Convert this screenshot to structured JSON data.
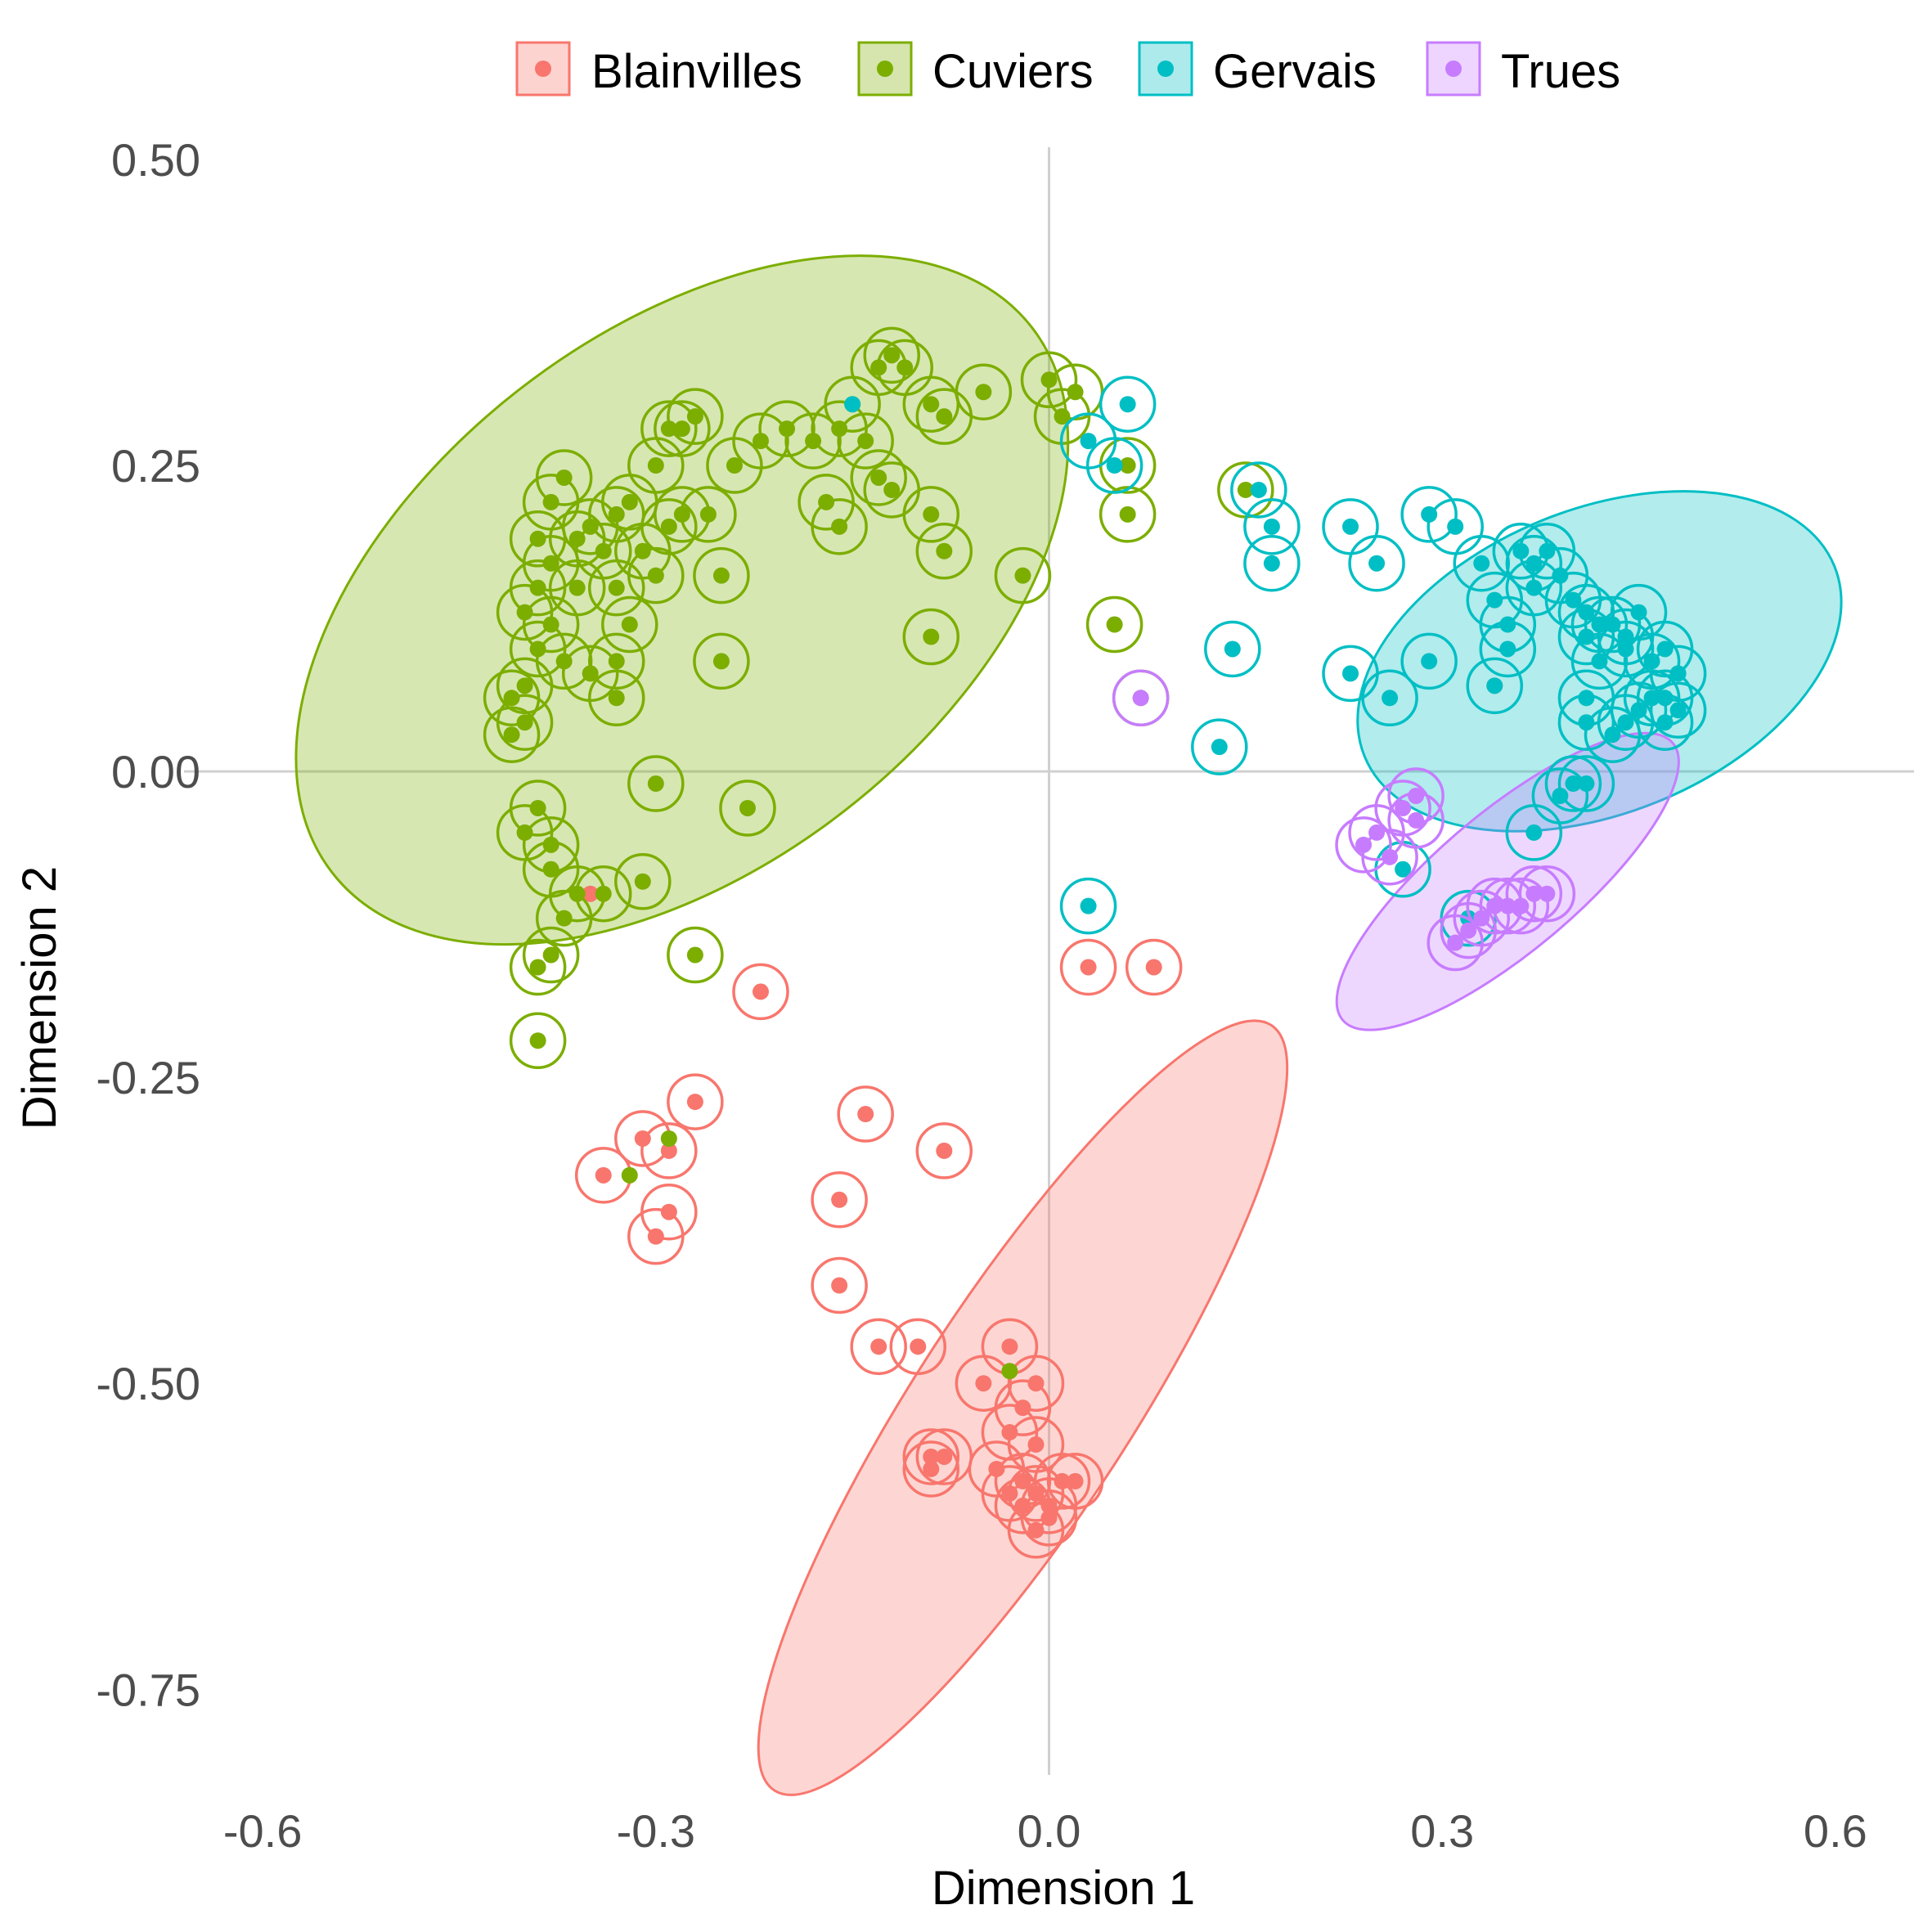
{
  "chart_data": {
    "type": "scatter",
    "xlabel": "Dimension 1",
    "ylabel": "Dimension 2",
    "xlim": [
      -0.66,
      0.66
    ],
    "ylim": [
      -0.82,
      0.51
    ],
    "x_ticks": [
      "-0.6",
      "-0.3",
      "0.0",
      "0.3",
      "0.6"
    ],
    "x_tick_values": [
      -0.6,
      -0.3,
      0.0,
      0.3,
      0.6
    ],
    "y_ticks": [
      "0.50",
      "0.25",
      "0.00",
      "-0.25",
      "-0.50",
      "-0.75"
    ],
    "y_tick_values": [
      0.5,
      0.25,
      0.0,
      -0.25,
      -0.5,
      -0.75
    ],
    "grid": false,
    "zero_lines": true,
    "legend_position": "top",
    "series": [
      {
        "name": "Blainvilles",
        "color": "#F8766D",
        "ellipse": {
          "cx": -0.02,
          "cy": -0.52,
          "rx": 0.36,
          "ry": 0.085,
          "angle": -57
        },
        "points": [
          [
            -0.27,
            -0.27
          ],
          [
            -0.29,
            -0.31
          ],
          [
            -0.31,
            -0.3
          ],
          [
            -0.34,
            -0.33
          ],
          [
            -0.29,
            -0.36
          ],
          [
            -0.3,
            -0.38
          ],
          [
            -0.08,
            -0.31
          ],
          [
            -0.14,
            -0.28
          ],
          [
            -0.16,
            -0.35
          ],
          [
            -0.16,
            -0.42
          ],
          [
            -0.13,
            -0.47
          ],
          [
            -0.1,
            -0.47
          ],
          [
            -0.03,
            -0.47
          ],
          [
            -0.05,
            -0.5
          ],
          [
            -0.01,
            -0.5
          ],
          [
            -0.02,
            -0.52
          ],
          [
            -0.09,
            -0.56
          ],
          [
            -0.08,
            -0.56
          ],
          [
            -0.09,
            -0.57
          ],
          [
            -0.03,
            -0.54
          ],
          [
            -0.01,
            -0.55
          ],
          [
            -0.04,
            -0.57
          ],
          [
            -0.02,
            -0.58
          ],
          [
            -0.03,
            -0.59
          ],
          [
            -0.01,
            -0.59
          ],
          [
            0.01,
            -0.58
          ],
          [
            0.02,
            -0.58
          ],
          [
            -0.02,
            -0.6
          ],
          [
            0.0,
            -0.61
          ],
          [
            -0.01,
            -0.62
          ],
          [
            0.0,
            -0.6
          ],
          [
            0.03,
            -0.16
          ],
          [
            0.08,
            -0.16
          ],
          [
            -0.22,
            -0.18
          ]
        ],
        "unringed": [
          [
            -0.35,
            -0.1
          ],
          [
            0.34,
            0.07
          ]
        ]
      },
      {
        "name": "Cuviers",
        "color": "#7CAE00",
        "ellipse": {
          "cx": -0.28,
          "cy": 0.14,
          "rx": 0.35,
          "ry": 0.21,
          "angle": -38
        },
        "points": [
          [
            -0.4,
            0.13
          ],
          [
            -0.41,
            0.06
          ],
          [
            -0.41,
            0.03
          ],
          [
            -0.4,
            0.04
          ],
          [
            -0.4,
            0.07
          ],
          [
            -0.39,
            0.1
          ],
          [
            -0.38,
            0.12
          ],
          [
            -0.37,
            0.09
          ],
          [
            -0.39,
            0.15
          ],
          [
            -0.38,
            0.17
          ],
          [
            -0.39,
            0.19
          ],
          [
            -0.38,
            0.22
          ],
          [
            -0.37,
            0.24
          ],
          [
            -0.36,
            0.19
          ],
          [
            -0.36,
            0.15
          ],
          [
            -0.35,
            0.2
          ],
          [
            -0.34,
            0.18
          ],
          [
            -0.33,
            0.15
          ],
          [
            -0.33,
            0.21
          ],
          [
            -0.32,
            0.22
          ],
          [
            -0.31,
            0.18
          ],
          [
            -0.3,
            0.16
          ],
          [
            -0.29,
            0.2
          ],
          [
            -0.3,
            0.25
          ],
          [
            -0.29,
            0.28
          ],
          [
            -0.28,
            0.28
          ],
          [
            -0.27,
            0.29
          ],
          [
            -0.28,
            0.21
          ],
          [
            -0.26,
            0.21
          ],
          [
            -0.25,
            0.16
          ],
          [
            -0.24,
            0.25
          ],
          [
            -0.22,
            0.27
          ],
          [
            -0.2,
            0.28
          ],
          [
            -0.18,
            0.27
          ],
          [
            -0.16,
            0.28
          ],
          [
            -0.14,
            0.27
          ],
          [
            -0.15,
            0.3
          ],
          [
            -0.13,
            0.33
          ],
          [
            -0.12,
            0.34
          ],
          [
            -0.11,
            0.33
          ],
          [
            -0.09,
            0.3
          ],
          [
            -0.08,
            0.29
          ],
          [
            -0.05,
            0.31
          ],
          [
            -0.13,
            0.24
          ],
          [
            -0.12,
            0.23
          ],
          [
            -0.09,
            0.21
          ],
          [
            -0.08,
            0.18
          ],
          [
            -0.16,
            0.2
          ],
          [
            -0.17,
            0.22
          ],
          [
            -0.25,
            0.09
          ],
          [
            -0.33,
            0.09
          ],
          [
            -0.33,
            0.06
          ],
          [
            -0.32,
            0.12
          ],
          [
            -0.35,
            0.08
          ],
          [
            -0.3,
            -0.01
          ],
          [
            -0.23,
            -0.03
          ],
          [
            -0.39,
            -0.03
          ],
          [
            -0.4,
            -0.05
          ],
          [
            -0.38,
            -0.06
          ],
          [
            -0.38,
            -0.08
          ],
          [
            -0.36,
            -0.1
          ],
          [
            -0.31,
            -0.09
          ],
          [
            -0.34,
            -0.1
          ],
          [
            -0.37,
            -0.12
          ],
          [
            -0.38,
            -0.15
          ],
          [
            -0.39,
            -0.16
          ],
          [
            -0.27,
            -0.15
          ],
          [
            -0.39,
            -0.22
          ],
          [
            -0.09,
            0.11
          ],
          [
            -0.02,
            0.16
          ],
          [
            0.0,
            0.32
          ],
          [
            0.02,
            0.31
          ],
          [
            0.01,
            0.29
          ],
          [
            0.06,
            0.25
          ],
          [
            0.06,
            0.21
          ],
          [
            0.05,
            0.12
          ],
          [
            0.07,
            0.06
          ],
          [
            0.15,
            0.23
          ]
        ],
        "unringed": [
          [
            -0.29,
            -0.3
          ],
          [
            -0.32,
            -0.33
          ],
          [
            -0.03,
            -0.49
          ]
        ]
      },
      {
        "name": "Gervais",
        "color": "#00BFC4",
        "ellipse": {
          "cx": 0.42,
          "cy": 0.09,
          "rx": 0.2,
          "ry": 0.12,
          "angle": -22
        },
        "points": [
          [
            0.23,
            0.2
          ],
          [
            0.25,
            0.17
          ],
          [
            0.23,
            0.08
          ],
          [
            0.26,
            0.06
          ],
          [
            0.29,
            0.09
          ],
          [
            0.29,
            0.21
          ],
          [
            0.31,
            0.2
          ],
          [
            0.33,
            0.17
          ],
          [
            0.34,
            0.14
          ],
          [
            0.35,
            0.12
          ],
          [
            0.35,
            0.1
          ],
          [
            0.36,
            0.18
          ],
          [
            0.37,
            0.17
          ],
          [
            0.38,
            0.18
          ],
          [
            0.37,
            0.15
          ],
          [
            0.39,
            0.16
          ],
          [
            0.4,
            0.14
          ],
          [
            0.41,
            0.13
          ],
          [
            0.42,
            0.12
          ],
          [
            0.41,
            0.11
          ],
          [
            0.42,
            0.09
          ],
          [
            0.43,
            0.12
          ],
          [
            0.44,
            0.11
          ],
          [
            0.45,
            0.13
          ],
          [
            0.44,
            0.1
          ],
          [
            0.46,
            0.09
          ],
          [
            0.47,
            0.1
          ],
          [
            0.48,
            0.08
          ],
          [
            0.47,
            0.06
          ],
          [
            0.48,
            0.05
          ],
          [
            0.47,
            0.04
          ],
          [
            0.46,
            0.06
          ],
          [
            0.45,
            0.05
          ],
          [
            0.44,
            0.04
          ],
          [
            0.43,
            0.03
          ],
          [
            0.41,
            0.04
          ],
          [
            0.41,
            0.06
          ],
          [
            0.4,
            -0.01
          ],
          [
            0.41,
            -0.01
          ],
          [
            0.39,
            -0.02
          ],
          [
            0.37,
            -0.05
          ],
          [
            0.27,
            -0.08
          ],
          [
            0.32,
            -0.12
          ],
          [
            0.14,
            0.1
          ],
          [
            0.13,
            0.02
          ],
          [
            0.17,
            0.2
          ],
          [
            0.17,
            0.17
          ],
          [
            0.16,
            0.23
          ],
          [
            0.03,
            0.27
          ],
          [
            0.05,
            0.25
          ],
          [
            0.06,
            0.3
          ],
          [
            0.03,
            -0.11
          ],
          [
            0.34,
            0.07
          ]
        ],
        "unringed": [
          [
            -0.15,
            0.3
          ]
        ]
      },
      {
        "name": "Trues",
        "color": "#C77CFF",
        "ellipse": {
          "cx": 0.35,
          "cy": -0.09,
          "rx": 0.17,
          "ry": 0.055,
          "angle": -40
        },
        "points": [
          [
            0.24,
            -0.06
          ],
          [
            0.25,
            -0.05
          ],
          [
            0.26,
            -0.07
          ],
          [
            0.27,
            -0.03
          ],
          [
            0.28,
            -0.02
          ],
          [
            0.28,
            -0.04
          ],
          [
            0.31,
            -0.14
          ],
          [
            0.32,
            -0.13
          ],
          [
            0.33,
            -0.12
          ],
          [
            0.34,
            -0.11
          ],
          [
            0.35,
            -0.11
          ],
          [
            0.36,
            -0.11
          ],
          [
            0.37,
            -0.1
          ],
          [
            0.38,
            -0.1
          ],
          [
            0.07,
            0.06
          ]
        ],
        "unringed": []
      }
    ]
  }
}
